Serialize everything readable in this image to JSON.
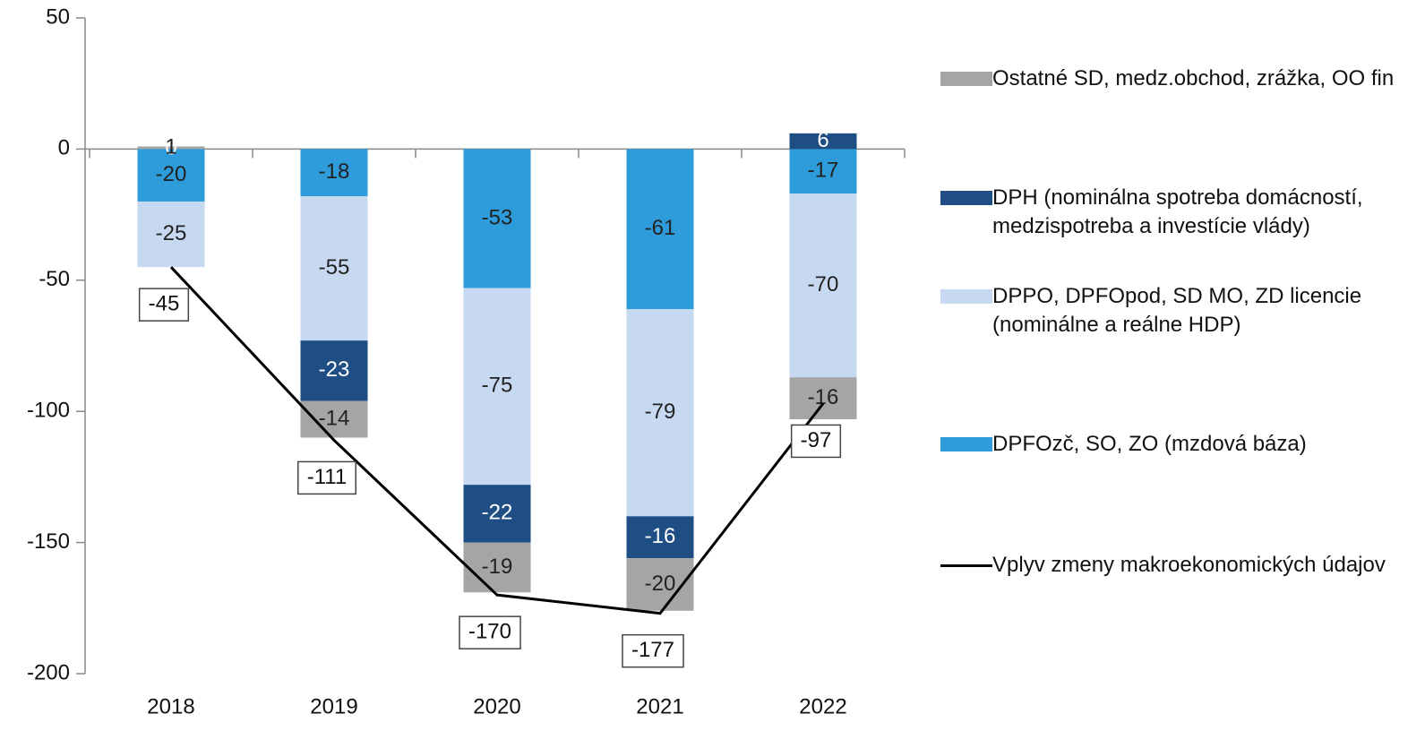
{
  "chart_data": {
    "type": "bar",
    "stacked": true,
    "categories": [
      "2018",
      "2019",
      "2020",
      "2021",
      "2022"
    ],
    "ylim": [
      -200,
      50
    ],
    "yticks": [
      -200,
      -150,
      -100,
      -50,
      0,
      50
    ],
    "series": [
      {
        "name": "DPFOzč, SO, ZO (mzdová báza)",
        "color": "#2e9bdb",
        "values": [
          -20,
          -18,
          -53,
          -61,
          -17
        ]
      },
      {
        "name": "DPPO, DPFOpod, SD MO, ZD licencie (nominálne a reálne HDP)",
        "color": "#c6d9f1",
        "values": [
          -25,
          -55,
          -75,
          -79,
          -70
        ]
      },
      {
        "name": "DPH (nominálna spotreba domácností, medzispotreba a investície vlády)",
        "color": "#1f4e85",
        "values": [
          0,
          -23,
          -22,
          -16,
          6
        ]
      },
      {
        "name": "Ostatné SD, medz.obchod, zrážka, OO fin",
        "color": "#a5a5a5",
        "values": [
          1,
          -14,
          -19,
          -20,
          -16
        ]
      },
      {
        "name": "Vplyv zmeny makroekonomických údajov",
        "type": "line",
        "color": "#000000",
        "values": [
          -45,
          -111,
          -170,
          -177,
          -97
        ]
      }
    ]
  }
}
